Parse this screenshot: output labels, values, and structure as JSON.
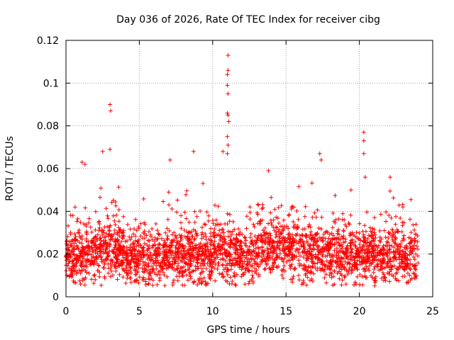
{
  "chart_data": {
    "type": "scatter",
    "title": "Day 036 of 2026, Rate Of TEC Index for receiver cibg",
    "xlabel": "GPS time / hours",
    "ylabel": "ROTI / TECUs",
    "xlim": [
      0,
      25
    ],
    "ylim": [
      0,
      0.12
    ],
    "x_ticks": [
      0,
      5,
      10,
      15,
      20,
      25
    ],
    "x_tick_labels": [
      "0",
      "5",
      "10",
      "15",
      "20",
      "25"
    ],
    "y_ticks": [
      0,
      0.02,
      0.04,
      0.06,
      0.08,
      0.1,
      0.12
    ],
    "y_tick_labels": [
      "0",
      "0.02",
      "0.04",
      "0.06",
      "0.08",
      "0.1",
      "0.12"
    ],
    "grid": true,
    "marker": "+",
    "marker_color": "#ff0000",
    "dense_band": {
      "x_range": [
        0,
        24
      ],
      "typical_y_range": [
        0.008,
        0.035
      ]
    },
    "notable_points": [
      {
        "x": 3.0,
        "y": 0.09
      },
      {
        "x": 3.05,
        "y": 0.087
      },
      {
        "x": 2.5,
        "y": 0.068
      },
      {
        "x": 3.0,
        "y": 0.069
      },
      {
        "x": 1.1,
        "y": 0.063
      },
      {
        "x": 1.3,
        "y": 0.062
      },
      {
        "x": 7.1,
        "y": 0.064
      },
      {
        "x": 8.7,
        "y": 0.068
      },
      {
        "x": 10.7,
        "y": 0.068
      },
      {
        "x": 11.05,
        "y": 0.113
      },
      {
        "x": 11.05,
        "y": 0.106
      },
      {
        "x": 11.0,
        "y": 0.104
      },
      {
        "x": 11.0,
        "y": 0.099
      },
      {
        "x": 11.05,
        "y": 0.095
      },
      {
        "x": 11.0,
        "y": 0.086
      },
      {
        "x": 11.05,
        "y": 0.085
      },
      {
        "x": 11.1,
        "y": 0.082
      },
      {
        "x": 11.0,
        "y": 0.075
      },
      {
        "x": 11.05,
        "y": 0.071
      },
      {
        "x": 11.0,
        "y": 0.067
      },
      {
        "x": 13.8,
        "y": 0.059
      },
      {
        "x": 17.3,
        "y": 0.067
      },
      {
        "x": 17.4,
        "y": 0.064
      },
      {
        "x": 20.3,
        "y": 0.077
      },
      {
        "x": 20.3,
        "y": 0.073
      },
      {
        "x": 20.3,
        "y": 0.067
      },
      {
        "x": 20.4,
        "y": 0.056
      },
      {
        "x": 22.1,
        "y": 0.056
      }
    ]
  }
}
